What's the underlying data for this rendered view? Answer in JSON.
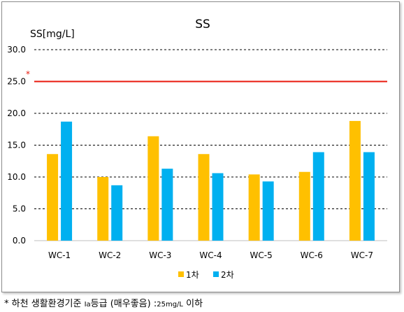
{
  "chart_data": {
    "type": "bar",
    "title": "SS",
    "ylabel": "SS[mg/L]",
    "xlabel": "",
    "categories": [
      "WC-1",
      "WC-2",
      "WC-3",
      "WC-4",
      "WC-5",
      "WC-6",
      "WC-7"
    ],
    "series": [
      {
        "name": "1차",
        "color": "#ffc000",
        "values": [
          13.6,
          10.0,
          16.4,
          13.6,
          10.4,
          10.8,
          18.8
        ]
      },
      {
        "name": "2차",
        "color": "#00b0f0",
        "values": [
          18.7,
          8.7,
          11.3,
          10.6,
          9.3,
          13.9,
          13.9
        ]
      }
    ],
    "ylim": [
      0,
      30
    ],
    "yticks": [
      "0.0",
      "5.0",
      "10.0",
      "15.0",
      "20.0",
      "25.0",
      "30.0"
    ],
    "grid": "dashed horizontal",
    "legend_position": "bottom-center",
    "reference_line": {
      "value": 25,
      "marker": "*",
      "color": "#e8190c"
    }
  },
  "footnote": {
    "star": "*",
    "part1": "하천 생활환경기준",
    "grade": "Ia",
    "part2": "등급 (매우좋음) :",
    "value": "25mg/L",
    "part3": "이하"
  }
}
